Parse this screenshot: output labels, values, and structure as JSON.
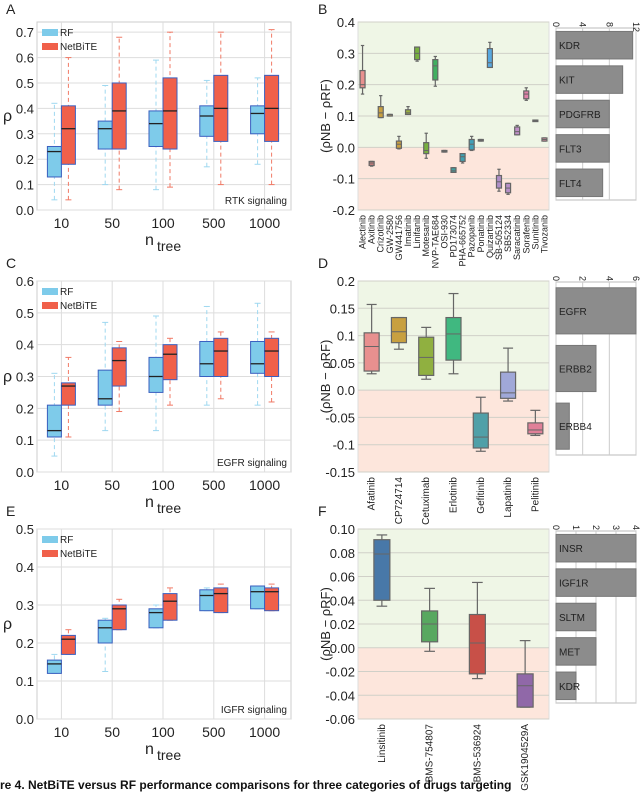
{
  "caption": "re 4. NetBiTE versus RF performance comparisons for three categories of drugs targeting",
  "colors": {
    "rf": "#7ecbea",
    "rf_edge": "#3a5fbf",
    "netbite": "#f0604a",
    "positive_bg": "#eff6e6",
    "negative_bg": "#fde6dc",
    "bar": "#8c8c8c"
  },
  "chart_data": [
    {
      "panel": "A",
      "type": "box",
      "title": "",
      "xlabel": "n",
      "xlabel_sub": "tree",
      "ylabel": "ρ",
      "annotation": "RTK signaling",
      "ylim": [
        0,
        0.74
      ],
      "yticks": [
        "0.0",
        "0.1",
        "0.2",
        "0.3",
        "0.4",
        "0.5",
        "0.6",
        "0.7"
      ],
      "categories": [
        "10",
        "50",
        "100",
        "500",
        "1000"
      ],
      "legend": "top-left",
      "series": [
        {
          "name": "RF",
          "boxes": [
            [
              0.04,
              0.13,
              0.23,
              0.25,
              0.42
            ],
            [
              0.1,
              0.24,
              0.32,
              0.35,
              0.49
            ],
            [
              0.08,
              0.25,
              0.34,
              0.39,
              0.59
            ],
            [
              0.17,
              0.29,
              0.37,
              0.41,
              0.51
            ],
            [
              0.18,
              0.3,
              0.38,
              0.41,
              0.52
            ]
          ]
        },
        {
          "name": "NetBiTE",
          "boxes": [
            [
              0.04,
              0.18,
              0.32,
              0.41,
              0.6
            ],
            [
              0.08,
              0.24,
              0.39,
              0.5,
              0.68
            ],
            [
              0.09,
              0.24,
              0.39,
              0.52,
              0.7
            ],
            [
              0.1,
              0.27,
              0.4,
              0.53,
              0.7
            ],
            [
              0.1,
              0.27,
              0.4,
              0.53,
              0.71
            ]
          ]
        }
      ]
    },
    {
      "panel": "B",
      "type": "box",
      "ylabel": "(ρNB − ρRF)",
      "ylim": [
        -0.2,
        0.4
      ],
      "yticks": [
        "-0.2",
        "-0.1",
        "0.0",
        "0.1",
        "0.2",
        "0.3",
        "0.4"
      ],
      "drugs": [
        {
          "name": "Alectinib",
          "box": [
            0.17,
            0.19,
            0.2,
            0.245,
            0.325
          ],
          "color": "#e8908f"
        },
        {
          "name": "Axitinib",
          "box": [
            -0.06,
            -0.058,
            -0.05,
            -0.045,
            -0.045
          ],
          "color": "#c87c7c"
        },
        {
          "name": "Crizotinib",
          "box": [
            0.095,
            0.095,
            0.11,
            0.13,
            0.165
          ],
          "color": "#c8a040"
        },
        {
          "name": "GW-2580",
          "box": [
            0.1,
            0.1,
            0.105,
            0.105,
            0.105
          ],
          "color": "#b0a060"
        },
        {
          "name": "GW441756",
          "box": [
            -0.005,
            -0.003,
            0.01,
            0.02,
            0.035
          ],
          "color": "#c8a040"
        },
        {
          "name": "Imatinib",
          "box": [
            0.105,
            0.105,
            0.11,
            0.12,
            0.13
          ],
          "color": "#9ab040"
        },
        {
          "name": "Linifanib",
          "box": [
            0.275,
            0.28,
            0.3,
            0.32,
            0.32
          ],
          "color": "#78b040"
        },
        {
          "name": "Motesanib",
          "box": [
            -0.035,
            -0.02,
            -0.01,
            0.015,
            0.045
          ],
          "color": "#78b040"
        },
        {
          "name": "NVP-TAE684",
          "box": [
            0.195,
            0.215,
            0.26,
            0.28,
            0.29
          ],
          "color": "#40b060"
        },
        {
          "name": "OSI-930",
          "box": [
            -0.015,
            -0.015,
            -0.012,
            -0.01,
            -0.01
          ],
          "color": "#5aa080"
        },
        {
          "name": "PD173074",
          "box": [
            -0.08,
            -0.08,
            -0.075,
            -0.065,
            -0.065
          ],
          "color": "#40a0a0"
        },
        {
          "name": "PHA-665752",
          "box": [
            -0.05,
            -0.045,
            -0.03,
            -0.02,
            -0.02
          ],
          "color": "#40a0b0"
        },
        {
          "name": "Pazopanib",
          "box": [
            -0.01,
            -0.008,
            0.01,
            0.025,
            0.035
          ],
          "color": "#40a0b8"
        },
        {
          "name": "Ponatinib",
          "box": [
            0.02,
            0.02,
            0.022,
            0.025,
            0.025
          ],
          "color": "#40a0c0"
        },
        {
          "name": "Quizartinib",
          "box": [
            0.255,
            0.255,
            0.27,
            0.315,
            0.335
          ],
          "color": "#58a8e0"
        },
        {
          "name": "SB-505124",
          "box": [
            -0.14,
            -0.13,
            -0.11,
            -0.09,
            -0.07
          ],
          "color": "#b090c8"
        },
        {
          "name": "SB52334",
          "box": [
            -0.15,
            -0.145,
            -0.13,
            -0.115,
            -0.115
          ],
          "color": "#b890c8"
        },
        {
          "name": "Saracatinib",
          "box": [
            0.04,
            0.04,
            0.05,
            0.065,
            0.07
          ],
          "color": "#c090c8"
        },
        {
          "name": "Sorafenib",
          "box": [
            0.15,
            0.155,
            0.17,
            0.18,
            0.19
          ],
          "color": "#e080a8"
        },
        {
          "name": "Sunitinib",
          "box": [
            0.085,
            0.085,
            0.085,
            0.087,
            0.087
          ],
          "color": "#c090b0"
        },
        {
          "name": "Tivozanib",
          "box": [
            0.02,
            0.02,
            0.025,
            0.03,
            0.03
          ],
          "color": "#e090a8"
        }
      ],
      "targets": {
        "type": "bar",
        "xlim": [
          0,
          12
        ],
        "xticks": [
          "0",
          "4",
          "8",
          "12"
        ],
        "categories": [
          "KDR",
          "KIT",
          "PDGFRB",
          "FLT3",
          "FLT4"
        ],
        "values": [
          11.5,
          10,
          8,
          8,
          7
        ]
      }
    },
    {
      "panel": "C",
      "type": "box",
      "xlabel": "n",
      "xlabel_sub": "tree",
      "ylabel": "ρ",
      "annotation": "EGFR signaling",
      "ylim": [
        0,
        0.6
      ],
      "yticks": [
        "0.0",
        "0.1",
        "0.2",
        "0.3",
        "0.4",
        "0.5",
        "0.6"
      ],
      "categories": [
        "10",
        "50",
        "100",
        "500",
        "1000"
      ],
      "legend": "top-left",
      "series": [
        {
          "name": "RF",
          "boxes": [
            [
              0.05,
              0.11,
              0.13,
              0.21,
              0.31
            ],
            [
              0.13,
              0.21,
              0.23,
              0.32,
              0.47
            ],
            [
              0.13,
              0.25,
              0.3,
              0.36,
              0.49
            ],
            [
              0.21,
              0.3,
              0.34,
              0.41,
              0.52
            ],
            [
              0.21,
              0.31,
              0.34,
              0.41,
              0.53
            ]
          ]
        },
        {
          "name": "NetBiTE",
          "boxes": [
            [
              0.11,
              0.21,
              0.27,
              0.28,
              0.36
            ],
            [
              0.19,
              0.27,
              0.35,
              0.39,
              0.41
            ],
            [
              0.21,
              0.29,
              0.37,
              0.4,
              0.42
            ],
            [
              0.23,
              0.3,
              0.38,
              0.42,
              0.44
            ],
            [
              0.22,
              0.3,
              0.38,
              0.42,
              0.44
            ]
          ]
        }
      ]
    },
    {
      "panel": "D",
      "type": "box",
      "ylabel": "(ρNB − ρRF)",
      "ylim": [
        -0.15,
        0.2
      ],
      "yticks": [
        "-0.15",
        "-0.1",
        "-0.05",
        "0.0",
        "0.05",
        "0.1",
        "0.15",
        "0.2"
      ],
      "drugs": [
        {
          "name": "Afatinib",
          "box": [
            0.03,
            0.035,
            0.08,
            0.105,
            0.157
          ],
          "color": "#e8908f"
        },
        {
          "name": "CP724714",
          "box": [
            0.075,
            0.087,
            0.107,
            0.133,
            0.133
          ],
          "color": "#c8a040"
        },
        {
          "name": "Cetuximab",
          "box": [
            0.02,
            0.027,
            0.06,
            0.097,
            0.115
          ],
          "color": "#90b040"
        },
        {
          "name": "Erlotinib",
          "box": [
            0.03,
            0.055,
            0.103,
            0.133,
            0.177
          ],
          "color": "#40b880"
        },
        {
          "name": "Gefitinib",
          "box": [
            -0.112,
            -0.106,
            -0.086,
            -0.042,
            -0.013
          ],
          "color": "#50a0a8"
        },
        {
          "name": "Lapatinib",
          "box": [
            -0.02,
            -0.015,
            -0.005,
            0.033,
            0.077
          ],
          "color": "#a0a8d8"
        },
        {
          "name": "Pelitinib",
          "box": [
            -0.083,
            -0.08,
            -0.073,
            -0.06,
            -0.037
          ],
          "color": "#e08098"
        }
      ],
      "targets": {
        "type": "bar",
        "xlim": [
          0,
          6
        ],
        "xticks": [
          "0",
          "2",
          "4",
          "6"
        ],
        "categories": [
          "EGFR",
          "ERBB2",
          "ERBB4"
        ],
        "values": [
          6,
          3,
          1
        ]
      }
    },
    {
      "panel": "E",
      "type": "box",
      "xlabel": "n",
      "xlabel_sub": "tree",
      "ylabel": "ρ",
      "annotation": "IGFR signaling",
      "ylim": [
        0,
        0.5
      ],
      "yticks": [
        "0.0",
        "0.1",
        "0.2",
        "0.3",
        "0.4",
        "0.5"
      ],
      "categories": [
        "10",
        "50",
        "100",
        "500",
        "1000"
      ],
      "legend": "top-left",
      "series": [
        {
          "name": "RF",
          "boxes": [
            [
              0.12,
              0.12,
              0.145,
              0.155,
              0.17
            ],
            [
              0.125,
              0.2,
              0.24,
              0.26,
              0.265
            ],
            [
              0.24,
              0.24,
              0.28,
              0.29,
              0.3
            ],
            [
              0.285,
              0.285,
              0.325,
              0.34,
              0.345
            ],
            [
              0.29,
              0.29,
              0.335,
              0.35,
              0.35
            ]
          ]
        },
        {
          "name": "NetBiTE",
          "boxes": [
            [
              0.17,
              0.17,
              0.21,
              0.22,
              0.235
            ],
            [
              0.235,
              0.235,
              0.29,
              0.3,
              0.315
            ],
            [
              0.26,
              0.26,
              0.31,
              0.33,
              0.345
            ],
            [
              0.28,
              0.28,
              0.33,
              0.345,
              0.355
            ],
            [
              0.285,
              0.285,
              0.335,
              0.345,
              0.355
            ]
          ]
        }
      ]
    },
    {
      "panel": "F",
      "type": "box",
      "ylabel": "(ρNB − ρRF)",
      "ylim": [
        -0.06,
        0.1
      ],
      "yticks": [
        "-0.06",
        "-0.04",
        "-0.02",
        "0.00",
        "0.02",
        "0.04",
        "0.06",
        "0.08",
        "0.10"
      ],
      "drugs": [
        {
          "name": "Linsitinib",
          "box": [
            0.035,
            0.04,
            0.079,
            0.091,
            0.095
          ],
          "color": "#4878a8"
        },
        {
          "name": "BMS-754807",
          "box": [
            -0.003,
            0.005,
            0.02,
            0.031,
            0.05
          ],
          "color": "#58a860"
        },
        {
          "name": "BMS-536924",
          "box": [
            -0.026,
            -0.022,
            0.004,
            0.028,
            0.055
          ],
          "color": "#c85048"
        },
        {
          "name": "GSK1904529A",
          "box": [
            -0.05,
            -0.05,
            -0.032,
            -0.022,
            0.006
          ],
          "color": "#9068a8"
        }
      ],
      "targets": {
        "type": "bar",
        "xlim": [
          0,
          4
        ],
        "xticks": [
          "0",
          "1",
          "2",
          "3",
          "4"
        ],
        "categories": [
          "INSR",
          "IGF1R",
          "SLTM",
          "MET",
          "KDR"
        ],
        "values": [
          4,
          4,
          2,
          2,
          1
        ]
      }
    }
  ]
}
